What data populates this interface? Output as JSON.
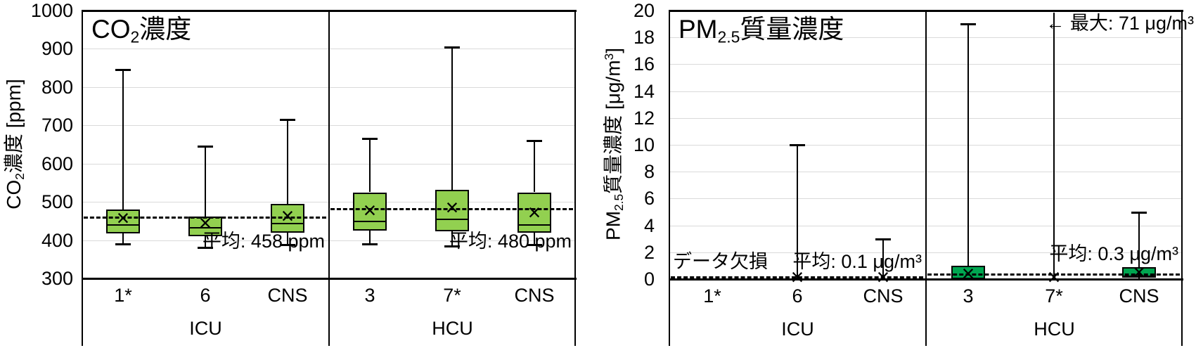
{
  "page": {
    "background": "#ffffff",
    "grid_color": "#dadada",
    "line_color": "#000000"
  },
  "chart_data": [
    {
      "type": "boxplot",
      "title": "CO2濃度",
      "title_rich": [
        [
          "CO"
        ],
        [
          "2",
          "sub"
        ],
        [
          "濃度"
        ]
      ],
      "ylabel": "CO2濃度 [ppm]",
      "ylabel_rich": [
        [
          "CO"
        ],
        [
          "2",
          "sub"
        ],
        [
          "濃度 [ppm]"
        ]
      ],
      "ylim": [
        300,
        1000
      ],
      "yticks": [
        300,
        400,
        500,
        600,
        700,
        800,
        900,
        1000
      ],
      "grid": true,
      "legend": "none",
      "box_color": "#92D050",
      "groups": [
        {
          "label": "ICU",
          "mean_line": 458,
          "mean_label": "平均: 458 ppm",
          "categories": [
            {
              "label": "1*",
              "whisker_low": 390,
              "q1": 418,
              "median": 440,
              "mean": 457,
              "q3": 480,
              "whisker_high": 845
            },
            {
              "label": "6",
              "whisker_low": 380,
              "q1": 410,
              "median": 433,
              "mean": 443,
              "q3": 462,
              "whisker_high": 645
            },
            {
              "label": "CNS",
              "whisker_low": 388,
              "q1": 420,
              "median": 443,
              "mean": 462,
              "q3": 495,
              "whisker_high": 715
            }
          ]
        },
        {
          "label": "HCU",
          "mean_line": 480,
          "mean_label": "平均: 480 ppm",
          "categories": [
            {
              "label": "3",
              "whisker_low": 390,
              "q1": 425,
              "median": 448,
              "mean": 476,
              "q3": 525,
              "whisker_high": 665
            },
            {
              "label": "7*",
              "whisker_low": 385,
              "q1": 424,
              "median": 455,
              "mean": 484,
              "q3": 532,
              "whisker_high": 905
            },
            {
              "label": "CNS",
              "whisker_low": 388,
              "q1": 420,
              "median": 440,
              "mean": 470,
              "q3": 525,
              "whisker_high": 660
            }
          ]
        }
      ],
      "annotations": []
    },
    {
      "type": "boxplot",
      "title": "PM2.5質量濃度",
      "title_rich": [
        [
          "PM"
        ],
        [
          "2.5",
          "sub"
        ],
        [
          "質量濃度"
        ]
      ],
      "ylabel": "PM2.5質量濃度 [μg/m3]",
      "ylabel_rich": [
        [
          "PM"
        ],
        [
          "2.5",
          "sub"
        ],
        [
          "質量濃度 [μg/m"
        ],
        [
          "3",
          "sup"
        ],
        [
          "]"
        ]
      ],
      "ylim": [
        0,
        20
      ],
      "yticks": [
        0,
        2,
        4,
        6,
        8,
        10,
        12,
        14,
        16,
        18,
        20
      ],
      "grid": true,
      "legend": "none",
      "box_color": "#00A650",
      "groups": [
        {
          "label": "ICU",
          "mean_line": 0.1,
          "mean_label": "平均: 0.1 μg/m³",
          "categories": [
            {
              "label": "1*",
              "no_data": true
            },
            {
              "label": "6",
              "whisker_low": 0,
              "q1": 0,
              "median": 0,
              "mean": 0.1,
              "q3": 0.1,
              "whisker_high": 10
            },
            {
              "label": "CNS",
              "whisker_low": 0,
              "q1": 0,
              "median": 0,
              "mean": 0.1,
              "q3": 0.1,
              "whisker_high": 3
            }
          ]
        },
        {
          "label": "HCU",
          "mean_line": 0.3,
          "mean_label": "平均: 0.3 μg/m³",
          "categories": [
            {
              "label": "3",
              "whisker_low": 0,
              "q1": 0,
              "median": 0.05,
              "mean": 0.35,
              "q3": 1.0,
              "whisker_high": 19
            },
            {
              "label": "7*",
              "whisker_low": 0,
              "q1": 0,
              "median": 0,
              "mean": 0.1,
              "q3": 0,
              "whisker_high": 71,
              "clipped": true
            },
            {
              "label": "CNS",
              "whisker_low": 0,
              "q1": 0.1,
              "median": 0.2,
              "mean": 0.45,
              "q3": 0.9,
              "whisker_high": 5
            }
          ]
        }
      ],
      "annotations": [
        {
          "id": "missing-data",
          "text": "データ欠損"
        },
        {
          "id": "max-note",
          "text": "← 最大: 71 μg/m³"
        }
      ]
    }
  ]
}
